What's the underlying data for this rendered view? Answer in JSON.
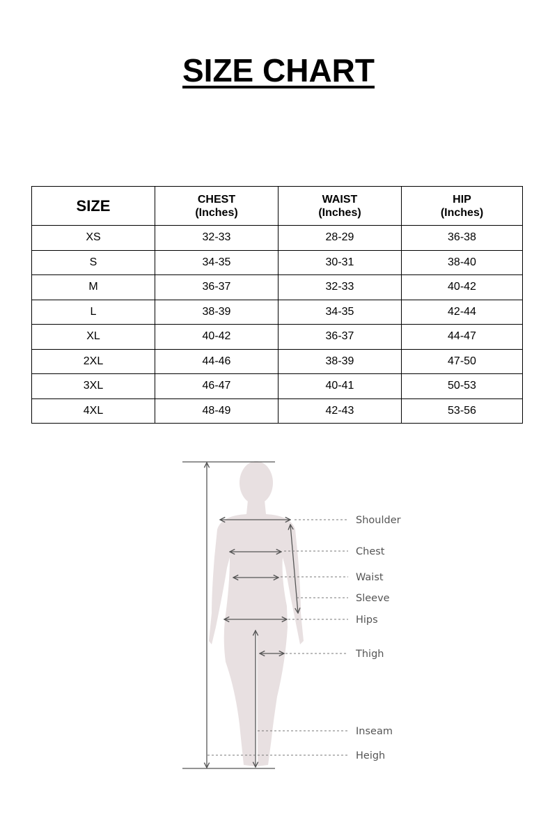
{
  "title": "SIZE CHART",
  "table": {
    "headers": [
      {
        "label": "SIZE",
        "unit": ""
      },
      {
        "label": "CHEST",
        "unit": "(Inches)"
      },
      {
        "label": "WAIST",
        "unit": "(Inches)"
      },
      {
        "label": "HIP",
        "unit": "(Inches)"
      }
    ],
    "rows": [
      [
        "XS",
        "32-33",
        "28-29",
        "36-38"
      ],
      [
        "S",
        "34-35",
        "30-31",
        "38-40"
      ],
      [
        "M",
        "36-37",
        "32-33",
        "40-42"
      ],
      [
        "L",
        "38-39",
        "34-35",
        "42-44"
      ],
      [
        "XL",
        "40-42",
        "36-37",
        "44-47"
      ],
      [
        "2XL",
        "44-46",
        "38-39",
        "47-50"
      ],
      [
        "3XL",
        "46-47",
        "40-41",
        "50-53"
      ],
      [
        "4XL",
        "48-49",
        "42-43",
        "53-56"
      ]
    ]
  },
  "diagram": {
    "silhouette_color": "#e8e0e1",
    "line_color": "#555555",
    "labels": [
      "Shoulder",
      "Chest",
      "Waist",
      "Sleeve",
      "Hips",
      "Thigh",
      "Inseam",
      "Heigh"
    ]
  }
}
